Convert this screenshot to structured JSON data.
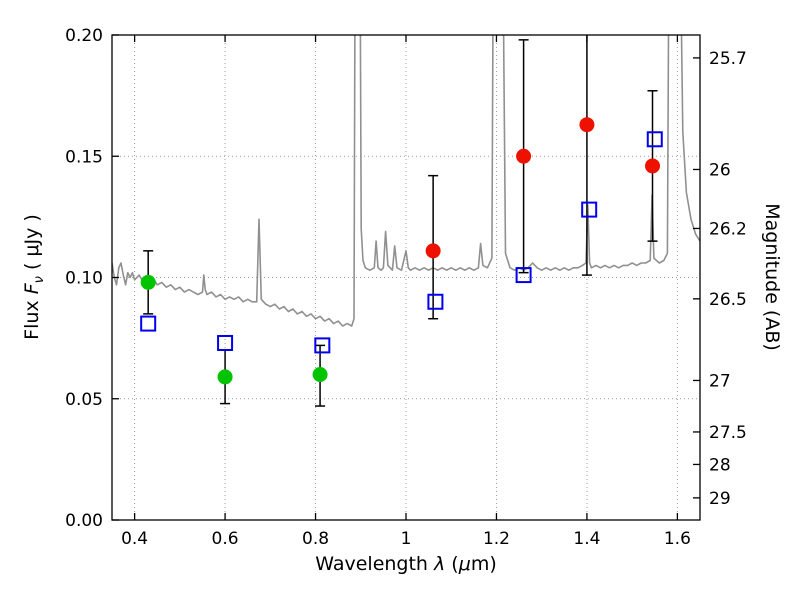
{
  "chart_data": {
    "type": "line",
    "title": "",
    "xlabel": {
      "prefix": "Wavelength  ",
      "lambda": "λ",
      "mid": " (",
      "mu": "μ",
      "suffix": "m)"
    },
    "ylabel_left": {
      "prefix": "Flux  ",
      "f": "F",
      "nu": "ν",
      "suffix": "  ( μJy )"
    },
    "ylabel_right": "Magnitude (AB)",
    "xlim": [
      0.35,
      1.65
    ],
    "ylim": [
      0.0,
      0.2
    ],
    "x_ticks": [
      0.4,
      0.6,
      0.8,
      1.0,
      1.2,
      1.4,
      1.6
    ],
    "x_tick_labels": [
      "0.4",
      "0.6",
      "0.8",
      "1",
      "1.2",
      "1.4",
      "1.6"
    ],
    "y_ticks_left": [
      0.0,
      0.05,
      0.1,
      0.15,
      0.2
    ],
    "y_tick_labels_left": [
      "0.00",
      "0.05",
      "0.10",
      "0.15",
      "0.20"
    ],
    "right_axis": {
      "mag_ticks": [
        25.7,
        26,
        26.2,
        26.5,
        27,
        27.5,
        28,
        29
      ],
      "mag_tick_labels": [
        "25.7",
        "26",
        "26.2",
        "26.5",
        "27",
        "27.5",
        "28",
        "29"
      ],
      "mag_zeropoint_ujy": 23.9
    },
    "grid": {
      "show": true,
      "color": "#9c9c9c",
      "dash": "1,3"
    },
    "colors": {
      "spectrum": "#909090",
      "green_points": "#00c400",
      "red_points": "#ee1100",
      "blue_squares": "#0000ee",
      "error_bars": "#000000",
      "frame": "#000000"
    },
    "series": [
      {
        "name": "model_spectrum",
        "type": "line",
        "color": "#909090",
        "points": [
          [
            0.35,
            0.106
          ],
          [
            0.355,
            0.1
          ],
          [
            0.36,
            0.097
          ],
          [
            0.365,
            0.104
          ],
          [
            0.37,
            0.106
          ],
          [
            0.375,
            0.101
          ],
          [
            0.38,
            0.097
          ],
          [
            0.385,
            0.102
          ],
          [
            0.39,
            0.1
          ],
          [
            0.395,
            0.102
          ],
          [
            0.4,
            0.099
          ],
          [
            0.41,
            0.101
          ],
          [
            0.42,
            0.098
          ],
          [
            0.43,
            0.099
          ],
          [
            0.44,
            0.1
          ],
          [
            0.45,
            0.097
          ],
          [
            0.46,
            0.098
          ],
          [
            0.47,
            0.096
          ],
          [
            0.48,
            0.097
          ],
          [
            0.49,
            0.095
          ],
          [
            0.5,
            0.096
          ],
          [
            0.51,
            0.094
          ],
          [
            0.52,
            0.095
          ],
          [
            0.53,
            0.094
          ],
          [
            0.54,
            0.093
          ],
          [
            0.55,
            0.094
          ],
          [
            0.553,
            0.101
          ],
          [
            0.556,
            0.095
          ],
          [
            0.56,
            0.093
          ],
          [
            0.57,
            0.094
          ],
          [
            0.58,
            0.092
          ],
          [
            0.59,
            0.093
          ],
          [
            0.6,
            0.091
          ],
          [
            0.61,
            0.092
          ],
          [
            0.62,
            0.091
          ],
          [
            0.63,
            0.092
          ],
          [
            0.64,
            0.09
          ],
          [
            0.65,
            0.091
          ],
          [
            0.66,
            0.09
          ],
          [
            0.67,
            0.09
          ],
          [
            0.675,
            0.124
          ],
          [
            0.68,
            0.091
          ],
          [
            0.69,
            0.089
          ],
          [
            0.7,
            0.088
          ],
          [
            0.71,
            0.089
          ],
          [
            0.72,
            0.087
          ],
          [
            0.73,
            0.088
          ],
          [
            0.74,
            0.086
          ],
          [
            0.75,
            0.087
          ],
          [
            0.76,
            0.085
          ],
          [
            0.77,
            0.086
          ],
          [
            0.78,
            0.084
          ],
          [
            0.79,
            0.085
          ],
          [
            0.8,
            0.083
          ],
          [
            0.81,
            0.084
          ],
          [
            0.82,
            0.082
          ],
          [
            0.83,
            0.083
          ],
          [
            0.84,
            0.081
          ],
          [
            0.85,
            0.082
          ],
          [
            0.86,
            0.08
          ],
          [
            0.87,
            0.081
          ],
          [
            0.88,
            0.08
          ],
          [
            0.885,
            0.083
          ],
          [
            0.888,
            0.26
          ],
          [
            0.892,
            0.45
          ],
          [
            0.897,
            0.3
          ],
          [
            0.901,
            0.12
          ],
          [
            0.905,
            0.107
          ],
          [
            0.91,
            0.104
          ],
          [
            0.92,
            0.103
          ],
          [
            0.93,
            0.104
          ],
          [
            0.934,
            0.115
          ],
          [
            0.938,
            0.104
          ],
          [
            0.945,
            0.103
          ],
          [
            0.95,
            0.104
          ],
          [
            0.955,
            0.119
          ],
          [
            0.96,
            0.105
          ],
          [
            0.965,
            0.104
          ],
          [
            0.97,
            0.103
          ],
          [
            0.975,
            0.113
          ],
          [
            0.98,
            0.104
          ],
          [
            0.99,
            0.103
          ],
          [
            1.0,
            0.111
          ],
          [
            1.005,
            0.104
          ],
          [
            1.01,
            0.103
          ],
          [
            1.02,
            0.104
          ],
          [
            1.03,
            0.103
          ],
          [
            1.04,
            0.104
          ],
          [
            1.05,
            0.103
          ],
          [
            1.06,
            0.104
          ],
          [
            1.07,
            0.103
          ],
          [
            1.08,
            0.104
          ],
          [
            1.09,
            0.103
          ],
          [
            1.1,
            0.104
          ],
          [
            1.11,
            0.103
          ],
          [
            1.12,
            0.104
          ],
          [
            1.13,
            0.103
          ],
          [
            1.14,
            0.104
          ],
          [
            1.15,
            0.103
          ],
          [
            1.16,
            0.104
          ],
          [
            1.165,
            0.114
          ],
          [
            1.17,
            0.105
          ],
          [
            1.18,
            0.104
          ],
          [
            1.19,
            0.108
          ],
          [
            1.195,
            0.32
          ],
          [
            1.2,
            0.45
          ],
          [
            1.205,
            0.28
          ],
          [
            1.21,
            0.4
          ],
          [
            1.215,
            0.22
          ],
          [
            1.22,
            0.11
          ],
          [
            1.23,
            0.104
          ],
          [
            1.24,
            0.103
          ],
          [
            1.25,
            0.104
          ],
          [
            1.26,
            0.103
          ],
          [
            1.27,
            0.104
          ],
          [
            1.28,
            0.106
          ],
          [
            1.29,
            0.104
          ],
          [
            1.3,
            0.103
          ],
          [
            1.31,
            0.104
          ],
          [
            1.32,
            0.103
          ],
          [
            1.33,
            0.104
          ],
          [
            1.34,
            0.103
          ],
          [
            1.35,
            0.104
          ],
          [
            1.36,
            0.103
          ],
          [
            1.37,
            0.104
          ],
          [
            1.38,
            0.104
          ],
          [
            1.39,
            0.105
          ],
          [
            1.398,
            0.106
          ],
          [
            1.402,
            0.13
          ],
          [
            1.406,
            0.106
          ],
          [
            1.41,
            0.104
          ],
          [
            1.42,
            0.105
          ],
          [
            1.43,
            0.104
          ],
          [
            1.44,
            0.105
          ],
          [
            1.45,
            0.104
          ],
          [
            1.46,
            0.105
          ],
          [
            1.47,
            0.104
          ],
          [
            1.48,
            0.105
          ],
          [
            1.49,
            0.105
          ],
          [
            1.5,
            0.106
          ],
          [
            1.51,
            0.105
          ],
          [
            1.52,
            0.106
          ],
          [
            1.53,
            0.106
          ],
          [
            1.54,
            0.107
          ],
          [
            1.544,
            0.134
          ],
          [
            1.548,
            0.108
          ],
          [
            1.56,
            0.106
          ],
          [
            1.57,
            0.107
          ],
          [
            1.578,
            0.11
          ],
          [
            1.583,
            0.3
          ],
          [
            1.59,
            0.48
          ],
          [
            1.598,
            0.42
          ],
          [
            1.605,
            0.26
          ],
          [
            1.612,
            0.16
          ],
          [
            1.62,
            0.135
          ],
          [
            1.63,
            0.124
          ],
          [
            1.64,
            0.118
          ],
          [
            1.65,
            0.115
          ]
        ]
      },
      {
        "name": "observed_photometry_optical",
        "type": "scatter",
        "marker": "circle",
        "color": "#00c400",
        "points": [
          {
            "x": 0.43,
            "y": 0.098,
            "err_lo": 0.013,
            "err_hi": 0.013
          },
          {
            "x": 0.6,
            "y": 0.059,
            "err_lo": 0.011,
            "err_hi": 0.011
          },
          {
            "x": 0.81,
            "y": 0.06,
            "err_lo": 0.013,
            "err_hi": 0.012
          }
        ]
      },
      {
        "name": "observed_photometry_nir",
        "type": "scatter",
        "marker": "circle",
        "color": "#ee1100",
        "points": [
          {
            "x": 1.06,
            "y": 0.111,
            "err_lo": 0.028,
            "err_hi": 0.031
          },
          {
            "x": 1.26,
            "y": 0.15,
            "err_lo": 0.048,
            "err_hi": 0.048
          },
          {
            "x": 1.4,
            "y": 0.163,
            "err_lo": 0.062,
            "err_hi": 0.065
          },
          {
            "x": 1.545,
            "y": 0.146,
            "err_lo": 0.031,
            "err_hi": 0.031
          }
        ]
      },
      {
        "name": "model_photometry",
        "type": "scatter",
        "marker": "open-square",
        "color": "#0000ee",
        "points": [
          {
            "x": 0.43,
            "y": 0.081
          },
          {
            "x": 0.6,
            "y": 0.073
          },
          {
            "x": 0.815,
            "y": 0.072
          },
          {
            "x": 1.065,
            "y": 0.09
          },
          {
            "x": 1.26,
            "y": 0.101
          },
          {
            "x": 1.405,
            "y": 0.128
          },
          {
            "x": 1.55,
            "y": 0.157
          }
        ]
      }
    ]
  }
}
